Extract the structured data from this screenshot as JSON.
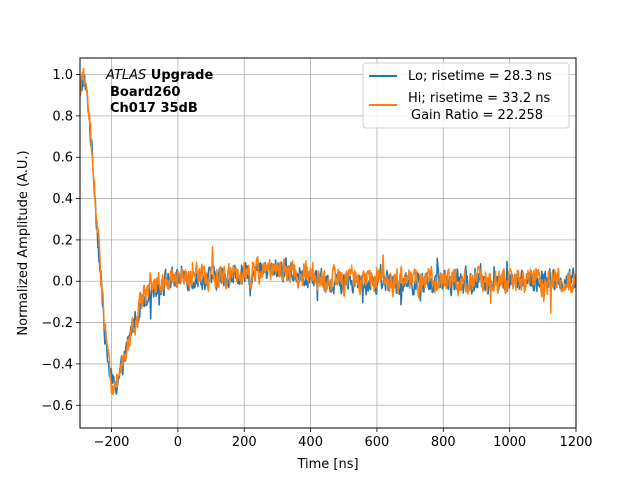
{
  "chart_data": {
    "type": "line",
    "xlabel": "Time [ns]",
    "ylabel": "Normalized Amplitude (A.U.)",
    "xlim": [
      -295,
      1200
    ],
    "ylim": [
      -0.71,
      1.08
    ],
    "xticks": [
      -200,
      0,
      200,
      400,
      600,
      800,
      1000,
      1200
    ],
    "yticks": [
      -0.6,
      -0.4,
      -0.2,
      0.0,
      0.2,
      0.4,
      0.6,
      0.8,
      1.0
    ],
    "xtick_labels": [
      "−200",
      "0",
      "200",
      "400",
      "600",
      "800",
      "1000",
      "1200"
    ],
    "ytick_labels": [
      "−0.6",
      "−0.4",
      "−0.2",
      "0.0",
      "0.2",
      "0.4",
      "0.6",
      "0.8",
      "1.0"
    ],
    "grid": true,
    "legend_position": "top-right",
    "annotation": {
      "line1_italic": "ATLAS",
      "line1_bold": " Upgrade",
      "line2": "Board260",
      "line3": "Ch017 35dB"
    },
    "legend_extra": "Gain Ratio = 22.258",
    "series": [
      {
        "name": "Lo; risetime = 28.3 ns",
        "color": "#1f77b4",
        "noise": 0.045,
        "envelope": [
          [
            -295,
            0.88
          ],
          [
            -285,
            0.99
          ],
          [
            -270,
            0.85
          ],
          [
            -255,
            0.55
          ],
          [
            -240,
            0.18
          ],
          [
            -225,
            -0.15
          ],
          [
            -212,
            -0.38
          ],
          [
            -200,
            -0.49
          ],
          [
            -185,
            -0.5
          ],
          [
            -165,
            -0.4
          ],
          [
            -140,
            -0.24
          ],
          [
            -115,
            -0.12
          ],
          [
            -90,
            -0.05
          ],
          [
            -50,
            0.0
          ],
          [
            0,
            0.02
          ],
          [
            100,
            0.01
          ],
          [
            200,
            0.03
          ],
          [
            300,
            0.06
          ],
          [
            380,
            0.03
          ],
          [
            450,
            -0.01
          ],
          [
            600,
            0.0
          ],
          [
            800,
            -0.01
          ],
          [
            1000,
            0.0
          ],
          [
            1200,
            0.0
          ]
        ]
      },
      {
        "name": "Hi; risetime = 33.2 ns",
        "color": "#ff7f0e",
        "noise": 0.05,
        "envelope": [
          [
            -295,
            0.9
          ],
          [
            -285,
            1.0
          ],
          [
            -270,
            0.86
          ],
          [
            -255,
            0.56
          ],
          [
            -240,
            0.2
          ],
          [
            -225,
            -0.14
          ],
          [
            -212,
            -0.37
          ],
          [
            -200,
            -0.5
          ],
          [
            -185,
            -0.5
          ],
          [
            -165,
            -0.4
          ],
          [
            -140,
            -0.25
          ],
          [
            -115,
            -0.13
          ],
          [
            -90,
            -0.05
          ],
          [
            -50,
            0.0
          ],
          [
            0,
            0.02
          ],
          [
            100,
            0.01
          ],
          [
            200,
            0.03
          ],
          [
            300,
            0.07
          ],
          [
            380,
            0.03
          ],
          [
            450,
            0.0
          ],
          [
            600,
            0.0
          ],
          [
            800,
            0.0
          ],
          [
            1000,
            0.0
          ],
          [
            1200,
            0.0
          ]
        ]
      }
    ]
  }
}
